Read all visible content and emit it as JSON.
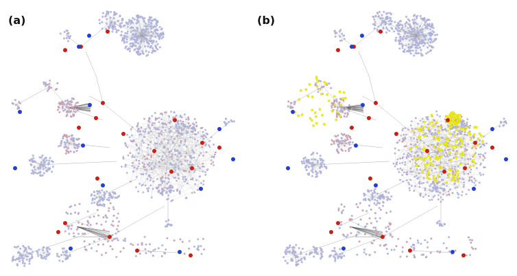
{
  "panels": [
    {
      "label": "(a)"
    },
    {
      "label": "(b)"
    }
  ],
  "colors": {
    "background": "#ffffff",
    "node_light": "#b9bde6",
    "node_outline": "#8f94c9",
    "node_pink": "#e4a2a2",
    "node_red": "#cc1d10",
    "node_blue": "#1f3fd6",
    "node_yellow": "#f2f016",
    "edge": "#9a9a9a",
    "dense_edge": "#555555"
  }
}
